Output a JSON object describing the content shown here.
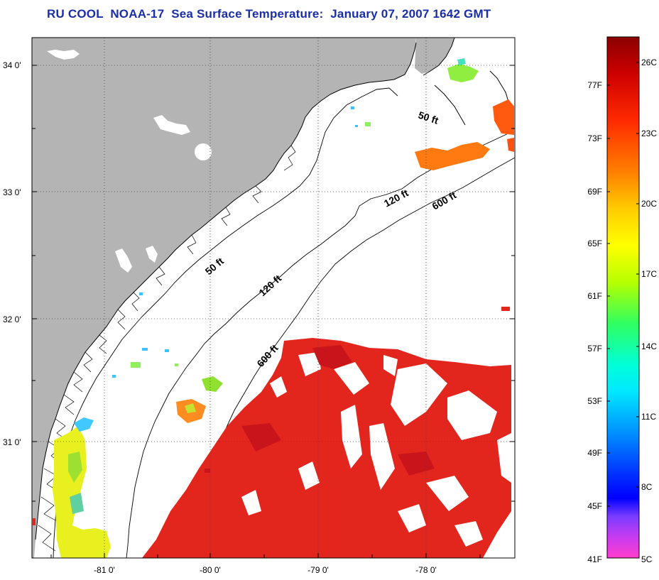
{
  "title": "RU COOL  NOAA-17  Sea Surface Temperature:  January 07, 2007 1642 GMT",
  "map": {
    "lat_labels": [
      "34 0'",
      "33 0'",
      "32 0'",
      "31 0'"
    ],
    "lon_labels": [
      "-81 0'",
      "-80 0'",
      "-79 0'",
      "-78 0'"
    ],
    "depth_labels": {
      "d50_upper": "50 ft",
      "d120_upper": "120 ft",
      "d600_upper": "600 ft",
      "d50_lower": "50 ft",
      "d120_lower": "120 ft",
      "d600_lower": "600 ft"
    },
    "colors": {
      "land": "#b4b4b4",
      "ocean_nodata": "#ffffff",
      "warm_water": "#e3261d",
      "grid": "#000000"
    }
  },
  "colorbar": {
    "fahrenheit_labels": [
      "77F",
      "73F",
      "69F",
      "65F",
      "61F",
      "57F",
      "53F",
      "49F",
      "45F",
      "41F"
    ],
    "celsius_labels": [
      "26C",
      "23C",
      "20C",
      "17C",
      "14C",
      "11C",
      "8C",
      "5C"
    ],
    "gradient_stops": [
      "#8b0000",
      "#d40000",
      "#ff3a00",
      "#ff8c00",
      "#ffd400",
      "#ffff00",
      "#c8ff00",
      "#40ff40",
      "#00ffc8",
      "#00ffff",
      "#00a0ff",
      "#0050ff",
      "#0000ff",
      "#8040ff",
      "#c040ff",
      "#ff40d0"
    ]
  }
}
